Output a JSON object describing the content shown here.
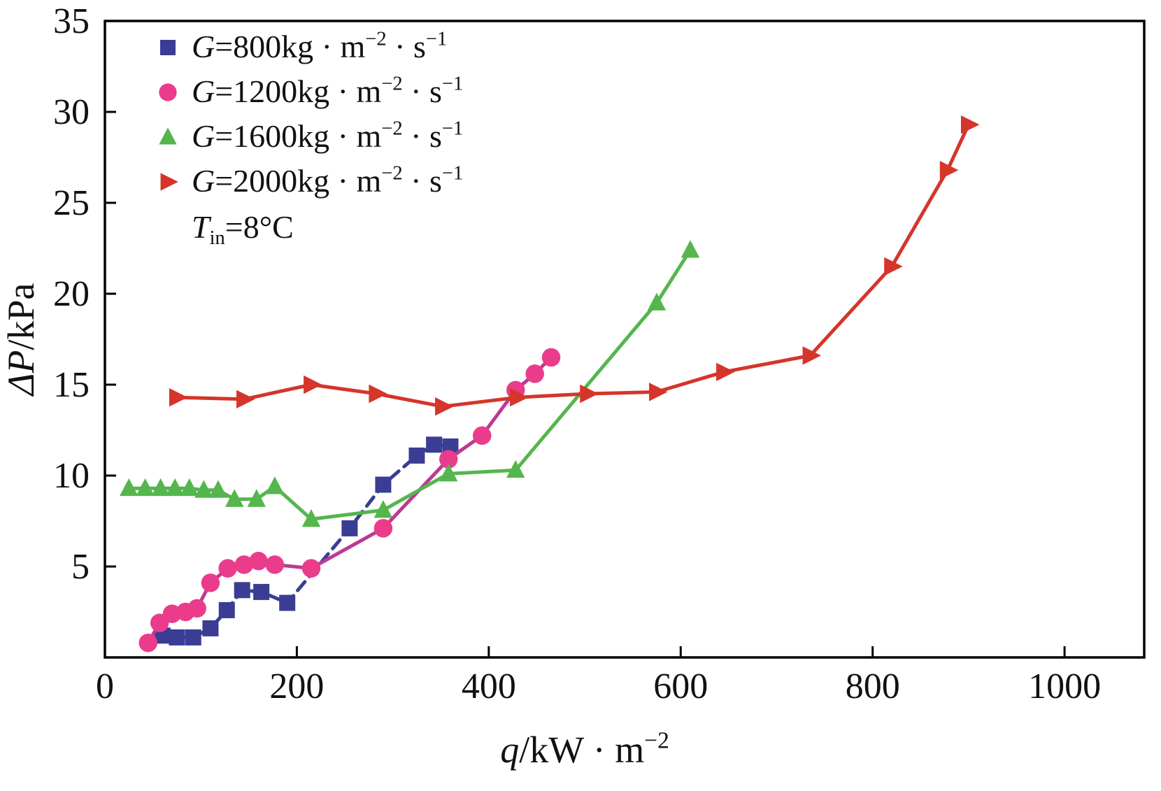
{
  "chart_data": {
    "type": "scatter-line",
    "title": "",
    "xlabel_parts": [
      {
        "text": "q",
        "italic": true
      },
      {
        "text": "/kW · m"
      },
      {
        "text": "−2",
        "sup": true
      }
    ],
    "ylabel_parts": [
      {
        "text": "ΔP",
        "italic": true
      },
      {
        "text": "/kPa"
      }
    ],
    "xlim": [
      0,
      1083
    ],
    "ylim": [
      0,
      35
    ],
    "xticks": [
      0,
      200,
      400,
      600,
      800,
      1000
    ],
    "yticks": [
      5,
      10,
      15,
      20,
      25,
      30,
      35
    ],
    "grid": false,
    "legend_position": "top-left-inside",
    "note_parts": [
      {
        "text": "T",
        "italic": true
      },
      {
        "text": "in",
        "sub": true
      },
      {
        "text": "=8°C"
      }
    ],
    "axis_color": "#000000",
    "series": [
      {
        "name": "G-800",
        "label_parts": [
          {
            "text": "G",
            "italic": true
          },
          {
            "text": "=800kg · m"
          },
          {
            "text": "−2",
            "sup": true
          },
          {
            "text": " · s"
          },
          {
            "text": "−1",
            "sup": true
          }
        ],
        "marker": "square",
        "color": "#3a3d93",
        "line_color": "#3a3d93",
        "line_dash": "16 10",
        "points": [
          [
            60,
            1.2
          ],
          [
            75,
            1.1
          ],
          [
            92,
            1.1
          ],
          [
            110,
            1.6
          ],
          [
            127,
            2.6
          ],
          [
            143,
            3.7
          ],
          [
            163,
            3.6
          ],
          [
            190,
            3.0
          ],
          [
            255,
            7.1
          ],
          [
            290,
            9.5
          ],
          [
            325,
            11.1
          ],
          [
            343,
            11.7
          ],
          [
            360,
            11.6
          ]
        ]
      },
      {
        "name": "G-1200",
        "label_parts": [
          {
            "text": "G",
            "italic": true
          },
          {
            "text": "=1200kg · m"
          },
          {
            "text": "−2",
            "sup": true
          },
          {
            "text": " · s"
          },
          {
            "text": "−1",
            "sup": true
          }
        ],
        "marker": "circle",
        "color": "#ea3c8b",
        "line_color": "#bb3a94",
        "line_dash": "",
        "points": [
          [
            45,
            0.8
          ],
          [
            57,
            1.9
          ],
          [
            70,
            2.4
          ],
          [
            84,
            2.5
          ],
          [
            96,
            2.7
          ],
          [
            110,
            4.1
          ],
          [
            128,
            4.9
          ],
          [
            145,
            5.1
          ],
          [
            160,
            5.3
          ],
          [
            177,
            5.1
          ],
          [
            215,
            4.9
          ],
          [
            290,
            7.1
          ],
          [
            358,
            10.9
          ],
          [
            393,
            12.2
          ],
          [
            428,
            14.7
          ],
          [
            448,
            15.6
          ],
          [
            465,
            16.5
          ]
        ]
      },
      {
        "name": "G-1600",
        "label_parts": [
          {
            "text": "G",
            "italic": true
          },
          {
            "text": "=1600kg · m"
          },
          {
            "text": "−2",
            "sup": true
          },
          {
            "text": " · s"
          },
          {
            "text": "−1",
            "sup": true
          }
        ],
        "marker": "triangle-up",
        "color": "#54b64c",
        "line_color": "#54b64c",
        "line_dash": "",
        "points": [
          [
            25,
            9.3
          ],
          [
            42,
            9.3
          ],
          [
            58,
            9.3
          ],
          [
            73,
            9.3
          ],
          [
            88,
            9.3
          ],
          [
            103,
            9.2
          ],
          [
            118,
            9.2
          ],
          [
            135,
            8.7
          ],
          [
            158,
            8.7
          ],
          [
            177,
            9.4
          ],
          [
            215,
            7.6
          ],
          [
            290,
            8.1
          ],
          [
            358,
            10.1
          ],
          [
            428,
            10.3
          ],
          [
            575,
            19.5
          ],
          [
            610,
            22.4
          ]
        ]
      },
      {
        "name": "G-2000",
        "label_parts": [
          {
            "text": "G",
            "italic": true
          },
          {
            "text": "=2000kg · m"
          },
          {
            "text": "−2",
            "sup": true
          },
          {
            "text": " · s"
          },
          {
            "text": "−1",
            "sup": true
          }
        ],
        "marker": "triangle-right",
        "color": "#d5352a",
        "line_color": "#d5352a",
        "line_dash": "",
        "points": [
          [
            75,
            14.3
          ],
          [
            145,
            14.2
          ],
          [
            215,
            15.0
          ],
          [
            283,
            14.5
          ],
          [
            352,
            13.8
          ],
          [
            430,
            14.3
          ],
          [
            503,
            14.5
          ],
          [
            575,
            14.6
          ],
          [
            645,
            15.7
          ],
          [
            735,
            16.6
          ],
          [
            820,
            21.5
          ],
          [
            878,
            26.8
          ],
          [
            900,
            29.3
          ]
        ]
      }
    ]
  }
}
